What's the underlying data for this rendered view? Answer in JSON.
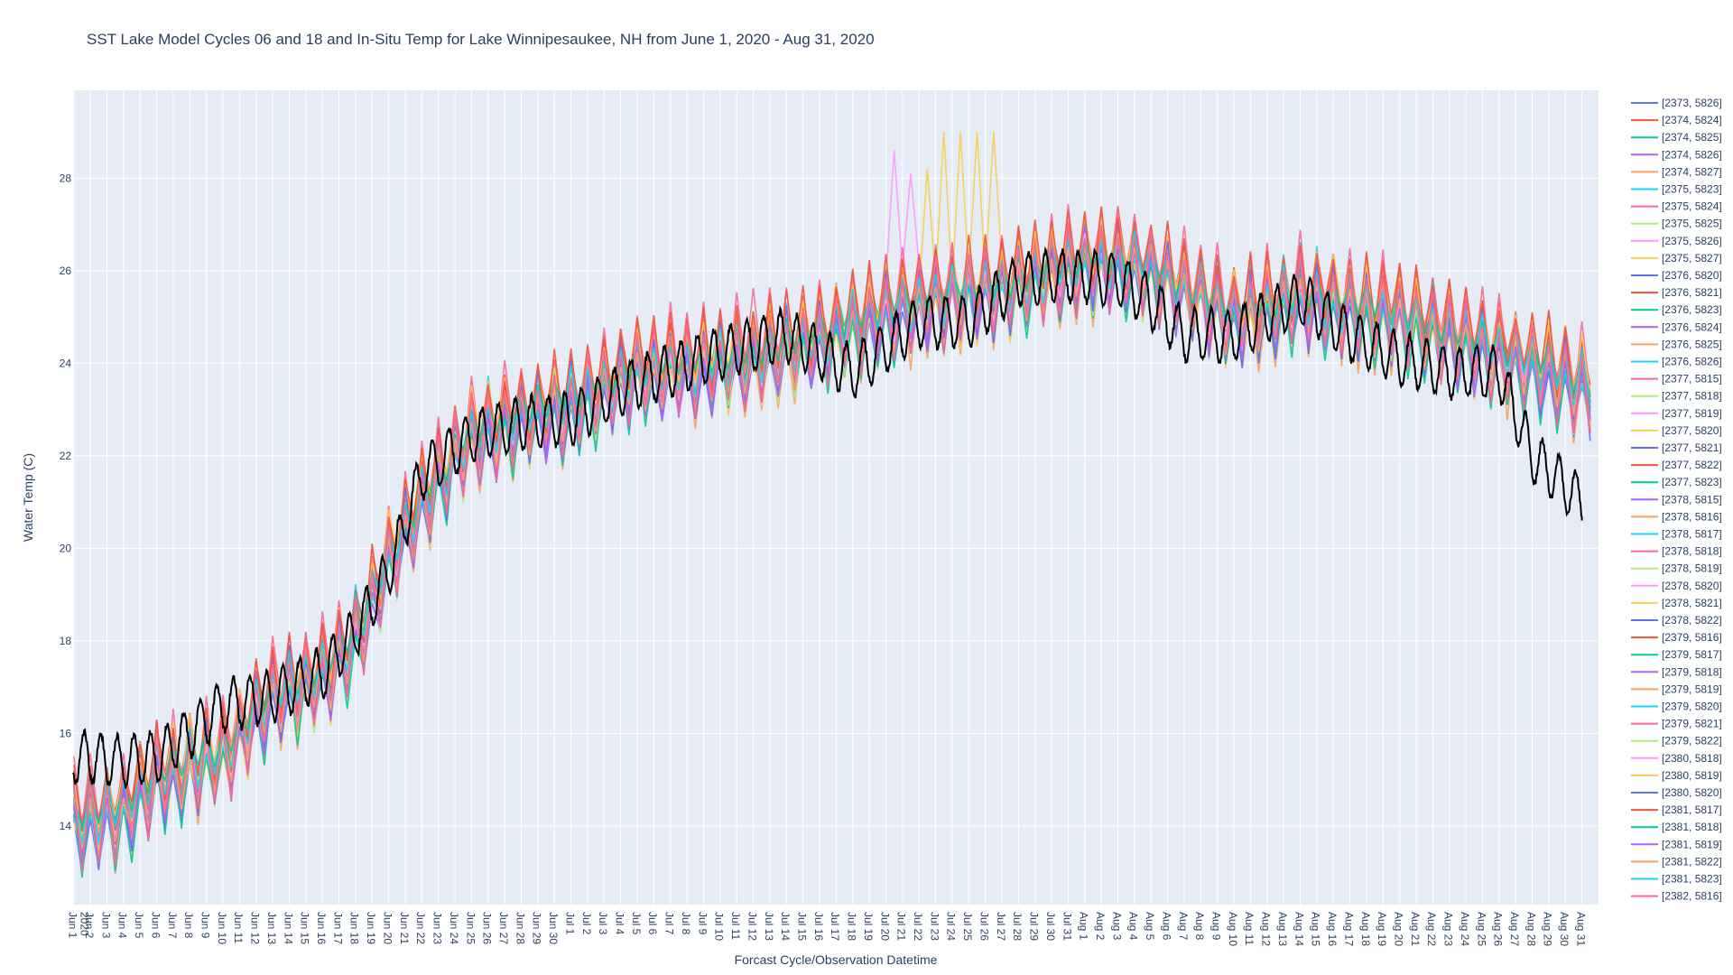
{
  "chart_data": {
    "type": "line",
    "title": "SST Lake Model Cycles 06 and 18 and In-Situ Temp for Lake Winnipesaukee, NH from June 1, 2020 - Aug 31, 2020",
    "xlabel": "Forcast Cycle/Observation Datetime",
    "ylabel": "Water Temp (C)",
    "x_range": [
      "2020-05-31T23:00",
      "2020-09-01T00:00"
    ],
    "ylim": [
      12.3,
      29.9
    ],
    "y_ticks": [
      14,
      16,
      18,
      20,
      22,
      24,
      26,
      28
    ],
    "x_tick_labels": [
      "Jun 1\n2020",
      "Jun 2",
      "Jun 3",
      "Jun 4",
      "Jun 5",
      "Jun 6",
      "Jun 7",
      "Jun 8",
      "Jun 9",
      "Jun 10",
      "Jun 11",
      "Jun 12",
      "Jun 13",
      "Jun 14",
      "Jun 15",
      "Jun 16",
      "Jun 17",
      "Jun 18",
      "Jun 19",
      "Jun 20",
      "Jun 21",
      "Jun 22",
      "Jun 23",
      "Jun 24",
      "Jun 25",
      "Jun 26",
      "Jun 27",
      "Jun 28",
      "Jun 29",
      "Jun 30",
      "Jul 1",
      "Jul 2",
      "Jul 3",
      "Jul 4",
      "Jul 5",
      "Jul 6",
      "Jul 7",
      "Jul 8",
      "Jul 9",
      "Jul 10",
      "Jul 11",
      "Jul 12",
      "Jul 13",
      "Jul 14",
      "Jul 15",
      "Jul 16",
      "Jul 17",
      "Jul 18",
      "Jul 19",
      "Jul 20",
      "Jul 21",
      "Jul 22",
      "Jul 23",
      "Jul 24",
      "Jul 25",
      "Jul 26",
      "Jul 27",
      "Jul 28",
      "Jul 29",
      "Jul 30",
      "Jul 31",
      "Aug 1",
      "Aug 2",
      "Aug 3",
      "Aug 4",
      "Aug 5",
      "Aug 6",
      "Aug 7",
      "Aug 8",
      "Aug 9",
      "Aug 10",
      "Aug 11",
      "Aug 12",
      "Aug 13",
      "Aug 14",
      "Aug 15",
      "Aug 16",
      "Aug 17",
      "Aug 18",
      "Aug 19",
      "Aug 20",
      "Aug 21",
      "Aug 22",
      "Aug 23",
      "Aug 24",
      "Aug 25",
      "Aug 26",
      "Aug 27",
      "Aug 28",
      "Aug 29",
      "Aug 30",
      "Aug 31"
    ],
    "grid": true,
    "legend_position": "right",
    "plot_background": "#e5ecf6",
    "palette": [
      "#636efa",
      "#ef553b",
      "#00cc96",
      "#ab63fa",
      "#ffa15a",
      "#19d3f3",
      "#ff6692",
      "#b6e880",
      "#ff97ff",
      "#fecb52"
    ],
    "observation_color": "#000000",
    "observation_profile": [
      [
        "2020-06-01",
        15.5
      ],
      [
        "2020-06-04",
        15.4
      ],
      [
        "2020-06-06",
        15.5
      ],
      [
        "2020-06-08",
        16.0
      ],
      [
        "2020-06-10",
        16.6
      ],
      [
        "2020-06-13",
        16.8
      ],
      [
        "2020-06-16",
        17.3
      ],
      [
        "2020-06-18",
        18.2
      ],
      [
        "2020-06-20",
        19.5
      ],
      [
        "2020-06-22",
        21.6
      ],
      [
        "2020-06-25",
        22.4
      ],
      [
        "2020-06-28",
        22.7
      ],
      [
        "2020-07-01",
        22.8
      ],
      [
        "2020-07-05",
        23.6
      ],
      [
        "2020-07-10",
        24.2
      ],
      [
        "2020-07-14",
        24.6
      ],
      [
        "2020-07-18",
        23.8
      ],
      [
        "2020-07-22",
        24.9
      ],
      [
        "2020-07-25",
        24.9
      ],
      [
        "2020-07-28",
        25.8
      ],
      [
        "2020-07-31",
        25.9
      ],
      [
        "2020-08-03",
        25.8
      ],
      [
        "2020-08-05",
        25.3
      ],
      [
        "2020-08-07",
        24.6
      ],
      [
        "2020-08-10",
        24.6
      ],
      [
        "2020-08-14",
        25.4
      ],
      [
        "2020-08-17",
        24.6
      ],
      [
        "2020-08-20",
        24.1
      ],
      [
        "2020-08-23",
        23.8
      ],
      [
        "2020-08-26",
        23.8
      ],
      [
        "2020-08-28",
        22.0
      ],
      [
        "2020-08-31",
        21.0
      ]
    ],
    "observation_end": "2020-08-31T00:00",
    "observation_end_value": 20.6,
    "model_profile": [
      [
        "2020-06-01",
        14.1
      ],
      [
        "2020-06-04",
        14.3
      ],
      [
        "2020-06-06",
        15.0
      ],
      [
        "2020-06-08",
        15.3
      ],
      [
        "2020-06-10",
        15.5
      ],
      [
        "2020-06-13",
        16.8
      ],
      [
        "2020-06-16",
        17.2
      ],
      [
        "2020-06-18",
        18.0
      ],
      [
        "2020-06-20",
        19.7
      ],
      [
        "2020-06-22",
        21.0
      ],
      [
        "2020-06-25",
        22.4
      ],
      [
        "2020-06-28",
        22.8
      ],
      [
        "2020-07-01",
        23.1
      ],
      [
        "2020-07-05",
        23.8
      ],
      [
        "2020-07-10",
        24.0
      ],
      [
        "2020-07-14",
        24.3
      ],
      [
        "2020-07-18",
        24.8
      ],
      [
        "2020-07-22",
        25.3
      ],
      [
        "2020-07-25",
        25.5
      ],
      [
        "2020-07-28",
        25.7
      ],
      [
        "2020-07-31",
        26.1
      ],
      [
        "2020-08-03",
        26.2
      ],
      [
        "2020-08-05",
        26.0
      ],
      [
        "2020-08-07",
        25.6
      ],
      [
        "2020-08-10",
        25.0
      ],
      [
        "2020-08-14",
        25.4
      ],
      [
        "2020-08-17",
        25.2
      ],
      [
        "2020-08-20",
        25.0
      ],
      [
        "2020-08-23",
        24.6
      ],
      [
        "2020-08-26",
        24.2
      ],
      [
        "2020-08-28",
        24.0
      ],
      [
        "2020-08-31",
        23.5
      ]
    ],
    "model_spikes": [
      {
        "series": "[2375, 5827]",
        "peaks": [
          [
            "2020-07-22",
            28.2
          ],
          [
            "2020-07-23",
            29.0
          ],
          [
            "2020-07-24",
            29.0
          ],
          [
            "2020-07-25",
            29.0
          ],
          [
            "2020-07-26",
            29.0
          ]
        ]
      },
      {
        "series": "[2375, 5826]",
        "peaks": [
          [
            "2020-07-20",
            28.6
          ],
          [
            "2020-07-21",
            28.1
          ]
        ]
      }
    ],
    "series": [
      {
        "name": "[2373, 5826]"
      },
      {
        "name": "[2374, 5824]"
      },
      {
        "name": "[2374, 5825]"
      },
      {
        "name": "[2374, 5826]"
      },
      {
        "name": "[2374, 5827]"
      },
      {
        "name": "[2375, 5823]"
      },
      {
        "name": "[2375, 5824]"
      },
      {
        "name": "[2375, 5825]"
      },
      {
        "name": "[2375, 5826]"
      },
      {
        "name": "[2375, 5827]"
      },
      {
        "name": "[2376, 5820]"
      },
      {
        "name": "[2376, 5821]"
      },
      {
        "name": "[2376, 5823]"
      },
      {
        "name": "[2376, 5824]"
      },
      {
        "name": "[2376, 5825]"
      },
      {
        "name": "[2376, 5826]"
      },
      {
        "name": "[2377, 5815]"
      },
      {
        "name": "[2377, 5818]"
      },
      {
        "name": "[2377, 5819]"
      },
      {
        "name": "[2377, 5820]"
      },
      {
        "name": "[2377, 5821]"
      },
      {
        "name": "[2377, 5822]"
      },
      {
        "name": "[2377, 5823]"
      },
      {
        "name": "[2378, 5815]"
      },
      {
        "name": "[2378, 5816]"
      },
      {
        "name": "[2378, 5817]"
      },
      {
        "name": "[2378, 5818]"
      },
      {
        "name": "[2378, 5819]"
      },
      {
        "name": "[2378, 5820]"
      },
      {
        "name": "[2378, 5821]"
      },
      {
        "name": "[2378, 5822]"
      },
      {
        "name": "[2379, 5816]"
      },
      {
        "name": "[2379, 5817]"
      },
      {
        "name": "[2379, 5818]"
      },
      {
        "name": "[2379, 5819]"
      },
      {
        "name": "[2379, 5820]"
      },
      {
        "name": "[2379, 5821]"
      },
      {
        "name": "[2379, 5822]"
      },
      {
        "name": "[2380, 5818]"
      },
      {
        "name": "[2380, 5819]"
      },
      {
        "name": "[2380, 5820]"
      },
      {
        "name": "[2381, 5817]"
      },
      {
        "name": "[2381, 5818]"
      },
      {
        "name": "[2381, 5819]"
      },
      {
        "name": "[2381, 5822]"
      },
      {
        "name": "[2381, 5823]"
      },
      {
        "name": "[2382, 5816]"
      }
    ]
  }
}
